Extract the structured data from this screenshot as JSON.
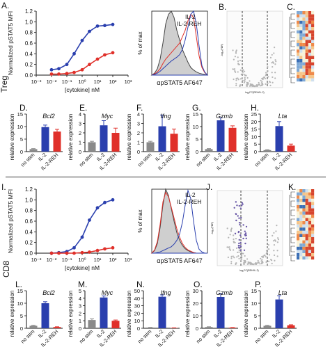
{
  "colors": {
    "il2": "#2a3fae",
    "reh": "#e0302a",
    "nostim": "#8a8a8a",
    "axis": "#111111"
  },
  "side_labels": {
    "treg": "Treg",
    "cd8": "CD8"
  },
  "panels": {
    "A": "A.",
    "B": "B.",
    "C": "C.",
    "D": "D.",
    "E": "E.",
    "F": "F.",
    "G": "G.",
    "H": "H.",
    "I": "I.",
    "J": "J.",
    "K": "K.",
    "L": "L.",
    "M": "M.",
    "N": "N.",
    "O": "O.",
    "P": "P."
  },
  "common": {
    "dose_ylabel": "Normalized pSTAT5 MFI",
    "dose_xlabel": "[cytokine] nM",
    "flow_ylabel": "% of max",
    "flow_xlabel": "αpSTAT5 AF647",
    "legend_il2": "IL-2",
    "legend_reh": "IL-2-REH",
    "bar_ylabel": "relative expression",
    "bar_categories": [
      "no stim",
      "IL-2",
      "IL-2-REH"
    ]
  },
  "chart_data": [
    {
      "id": "A",
      "type": "scatter",
      "title": "",
      "xlabel": "[cytokine] nM",
      "ylabel": "Normalized pSTAT5 MFI",
      "xscale": "log",
      "xlim": [
        0.001,
        1000
      ],
      "ylim": [
        0,
        1.2
      ],
      "yticks": [
        0,
        0.2,
        0.4,
        0.6,
        0.8,
        1.0,
        1.2
      ],
      "xtick_labels": [
        "10⁻³",
        "10⁻²",
        "10⁻¹",
        "10⁰",
        "10¹",
        "10²",
        "10³"
      ],
      "series": [
        {
          "name": "IL-2",
          "x": [
            0.01,
            0.03,
            0.1,
            0.3,
            1,
            3,
            10,
            30,
            100
          ],
          "y": [
            0.1,
            0.12,
            0.2,
            0.4,
            0.65,
            0.82,
            0.92,
            0.93,
            0.95
          ]
        },
        {
          "name": "IL-2-REH",
          "x": [
            0.01,
            0.03,
            0.1,
            0.3,
            1,
            3,
            10,
            30,
            100
          ],
          "y": [
            0.02,
            0.02,
            0.03,
            0.05,
            0.1,
            0.2,
            0.3,
            0.38,
            0.42
          ]
        }
      ]
    },
    {
      "id": "A-flow",
      "type": "area",
      "xlabel": "αpSTAT5 AF647",
      "ylabel": "% of max",
      "series": [
        {
          "name": "no stim",
          "x": [
            0,
            1,
            2,
            3,
            4,
            5,
            6,
            7,
            8,
            9,
            10,
            11,
            12,
            13,
            14,
            15,
            16,
            17,
            18,
            19,
            20
          ],
          "y": [
            0,
            3,
            10,
            25,
            50,
            80,
            95,
            100,
            90,
            70,
            55,
            40,
            30,
            20,
            12,
            8,
            5,
            3,
            2,
            1,
            0
          ]
        },
        {
          "name": "IL-2-REH",
          "x": [
            0,
            1,
            2,
            3,
            4,
            5,
            6,
            7,
            8,
            9,
            10,
            11,
            12,
            13,
            14,
            15,
            16,
            17,
            18,
            19,
            20
          ],
          "y": [
            0,
            2,
            5,
            10,
            18,
            25,
            30,
            35,
            40,
            45,
            50,
            60,
            70,
            85,
            95,
            90,
            60,
            30,
            12,
            4,
            0
          ]
        },
        {
          "name": "IL-2",
          "x": [
            0,
            1,
            2,
            3,
            4,
            5,
            6,
            7,
            8,
            9,
            10,
            11,
            12,
            13,
            14,
            15,
            16,
            17,
            18,
            19,
            20
          ],
          "y": [
            0,
            1,
            3,
            6,
            10,
            14,
            18,
            22,
            25,
            28,
            32,
            40,
            55,
            75,
            95,
            100,
            80,
            45,
            15,
            5,
            0
          ]
        }
      ]
    },
    {
      "id": "D",
      "type": "bar",
      "title": "Bcl2",
      "ylabel": "relative expression",
      "ylim": [
        0,
        15
      ],
      "yticks": [
        0,
        5,
        10,
        15
      ],
      "categories": [
        "no stim",
        "IL-2",
        "IL-2-REH"
      ],
      "values": [
        1,
        9.8,
        8
      ],
      "errors": [
        0.2,
        0.8,
        0.9
      ]
    },
    {
      "id": "E",
      "type": "bar",
      "title": "Myc",
      "ylabel": "relative expression",
      "ylim": [
        0,
        4
      ],
      "yticks": [
        0,
        1,
        2,
        3,
        4
      ],
      "categories": [
        "no stim",
        "IL-2",
        "IL-2-REH"
      ],
      "values": [
        1,
        2.8,
        2
      ],
      "errors": [
        0.1,
        0.5,
        0.5
      ]
    },
    {
      "id": "F",
      "type": "bar",
      "title": "Ifng",
      "ylabel": "relative expression",
      "ylim": [
        0,
        4
      ],
      "yticks": [
        0,
        1,
        2,
        3,
        4
      ],
      "categories": [
        "no stim",
        "IL-2",
        "IL-2-REH"
      ],
      "values": [
        1,
        2.7,
        1.9
      ],
      "errors": [
        0.1,
        1.2,
        0.5
      ]
    },
    {
      "id": "G",
      "type": "bar",
      "title": "Gzmb",
      "ylabel": "relative expression",
      "ylim": [
        0,
        15
      ],
      "yticks": [
        0,
        5,
        10,
        15
      ],
      "categories": [
        "no stim",
        "IL-2",
        "IL-2-REH"
      ],
      "values": [
        1,
        12.5,
        9.5
      ],
      "errors": [
        0.2,
        1.0,
        0.8
      ]
    },
    {
      "id": "H",
      "type": "bar",
      "title": "Lta",
      "ylabel": "relative expression",
      "ylim": [
        0,
        25
      ],
      "yticks": [
        0,
        5,
        10,
        15,
        20,
        25
      ],
      "categories": [
        "no stim",
        "IL-2",
        "IL-2-REH"
      ],
      "values": [
        1,
        17,
        4
      ],
      "errors": [
        0.3,
        3.0,
        1.0
      ]
    },
    {
      "id": "I",
      "type": "scatter",
      "title": "",
      "xlabel": "[cytokine] nM",
      "ylabel": "Normalized pSTAT5 MFI",
      "xscale": "log",
      "xlim": [
        0.001,
        1000
      ],
      "ylim": [
        0,
        1.2
      ],
      "yticks": [
        0,
        0.2,
        0.4,
        0.6,
        0.8,
        1.0,
        1.2
      ],
      "xtick_labels": [
        "10⁻³",
        "10⁻²",
        "10⁻¹",
        "10⁰",
        "10¹",
        "10²",
        "10³"
      ],
      "series": [
        {
          "name": "IL-2",
          "x": [
            0.01,
            0.03,
            0.1,
            0.3,
            1,
            3,
            10,
            30,
            100
          ],
          "y": [
            0.0,
            0.01,
            0.03,
            0.1,
            0.3,
            0.62,
            0.85,
            0.95,
            1.0
          ]
        },
        {
          "name": "IL-2-REH",
          "x": [
            0.01,
            0.03,
            0.1,
            0.3,
            1,
            3,
            10,
            30,
            100
          ],
          "y": [
            0.0,
            0.0,
            0.0,
            0.0,
            0.01,
            0.02,
            0.05,
            0.08,
            0.1
          ]
        }
      ]
    },
    {
      "id": "I-flow",
      "type": "area",
      "xlabel": "αpSTAT5 AF647",
      "ylabel": "% of max",
      "series": [
        {
          "name": "no stim",
          "x": [
            0,
            1,
            2,
            3,
            4,
            5,
            6,
            7,
            8,
            9,
            10,
            11,
            12,
            13,
            14,
            15,
            16,
            17,
            18,
            19,
            20
          ],
          "y": [
            0,
            4,
            15,
            40,
            75,
            100,
            90,
            70,
            50,
            32,
            20,
            12,
            7,
            4,
            2,
            1,
            0,
            0,
            0,
            0,
            0
          ]
        },
        {
          "name": "IL-2-REH",
          "x": [
            0,
            1,
            2,
            3,
            4,
            5,
            6,
            7,
            8,
            9,
            10,
            11,
            12,
            13,
            14,
            15,
            16,
            17,
            18,
            19,
            20
          ],
          "y": [
            0,
            5,
            18,
            45,
            80,
            95,
            88,
            72,
            55,
            38,
            25,
            15,
            9,
            5,
            3,
            1,
            0,
            0,
            0,
            0,
            0
          ]
        },
        {
          "name": "IL-2",
          "x": [
            0,
            1,
            2,
            3,
            4,
            5,
            6,
            7,
            8,
            9,
            10,
            11,
            12,
            13,
            14,
            15,
            16,
            17,
            18,
            19,
            20
          ],
          "y": [
            0,
            0,
            1,
            2,
            4,
            6,
            8,
            10,
            14,
            20,
            30,
            48,
            75,
            98,
            85,
            50,
            20,
            6,
            2,
            0,
            0
          ]
        }
      ]
    },
    {
      "id": "L",
      "type": "bar",
      "title": "Bcl2",
      "ylabel": "relative expression",
      "ylim": [
        0,
        15
      ],
      "yticks": [
        0,
        5,
        10,
        15
      ],
      "categories": [
        "no stim",
        "IL-2",
        "IL-2-REH"
      ],
      "values": [
        1,
        10,
        0.5
      ],
      "errors": [
        0.2,
        0.6,
        0.1
      ]
    },
    {
      "id": "M",
      "type": "bar",
      "title": "Myc",
      "ylabel": "relative expression",
      "ylim": [
        0,
        5
      ],
      "yticks": [
        0,
        1,
        2,
        3,
        4,
        5
      ],
      "categories": [
        "no stim",
        "IL-2",
        "IL-2-REH"
      ],
      "values": [
        1.1,
        4.1,
        1
      ],
      "errors": [
        0.15,
        0.2,
        0.1
      ]
    },
    {
      "id": "N",
      "type": "bar",
      "title": "Ifng",
      "ylabel": "relative expression",
      "ylim": [
        0,
        50
      ],
      "yticks": [
        0,
        10,
        20,
        30,
        40,
        50
      ],
      "categories": [
        "no stim",
        "IL-2",
        "IL-2-REH"
      ],
      "values": [
        1,
        42,
        0.5
      ],
      "errors": [
        0.2,
        2.5,
        0.1
      ]
    },
    {
      "id": "O",
      "type": "bar",
      "title": "Gzmb",
      "ylabel": "relative expression",
      "ylim": [
        0,
        30
      ],
      "yticks": [
        0,
        10,
        20,
        30
      ],
      "categories": [
        "no stim",
        "IL-2",
        "IL-2-REH"
      ],
      "values": [
        1,
        25,
        0.5
      ],
      "errors": [
        0.2,
        2.5,
        0.1
      ]
    },
    {
      "id": "P",
      "type": "bar",
      "title": "Lta",
      "ylabel": "relative expression",
      "ylim": [
        0,
        15
      ],
      "yticks": [
        0,
        5,
        10,
        15
      ],
      "categories": [
        "no stim",
        "IL-2",
        "IL-2-REH"
      ],
      "values": [
        1,
        11.5,
        1.2
      ],
      "errors": [
        0.2,
        1.5,
        0.2
      ]
    }
  ]
}
